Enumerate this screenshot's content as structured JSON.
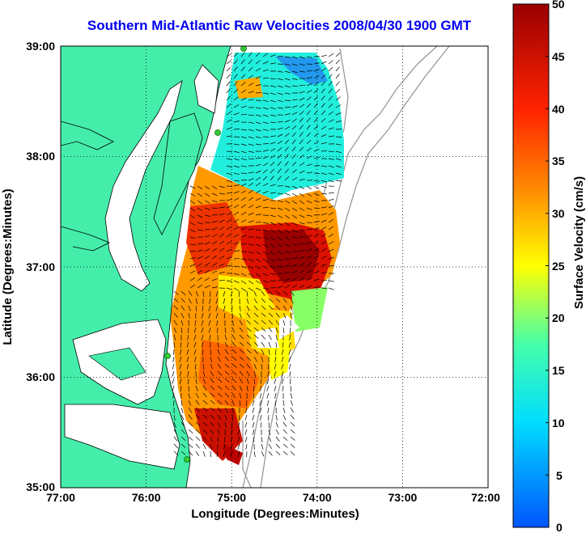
{
  "title": "Southern Mid-Atlantic Raw Velocities 2008/04/30 1900 GMT",
  "map": {
    "x_label": "Longitude (Degrees:Minutes)",
    "y_label": "Latitude (Degrees:Minutes)",
    "x_ticks": [
      "77:00",
      "76:00",
      "75:00",
      "74:00",
      "73:00",
      "72:00"
    ],
    "y_ticks": [
      "39:00",
      "38:00",
      "37:00",
      "36:00",
      "35:00"
    ],
    "land_color": "#44eeaa",
    "grid": "dotted",
    "colors": {
      "land": "#44eeaa",
      "stations": "#33cc33",
      "bathymetry": "#999999",
      "coast": "#000000"
    }
  },
  "colorbar": {
    "label": "Surface Velocity (cm/s)",
    "ticks": [
      "50",
      "45",
      "40",
      "35",
      "30",
      "25",
      "20",
      "15",
      "10",
      "5",
      "0"
    ],
    "range": [
      0,
      50
    ],
    "colormap": "jet"
  },
  "chart_data": {
    "type": "heatmap",
    "title": "Southern Mid-Atlantic Raw Velocities 2008/04/30 1900 GMT",
    "xlabel": "Longitude (Degrees:Minutes)",
    "ylabel": "Latitude (Degrees:Minutes)",
    "xlim": [
      "77:00",
      "72:00"
    ],
    "ylim": [
      "35:00",
      "39:00"
    ],
    "colorbar_label": "Surface Velocity (cm/s)",
    "colorbar_range": [
      0,
      50
    ],
    "stations": [
      {
        "lon": -74.9,
        "lat": 39.0
      },
      {
        "lon": -75.15,
        "lat": 38.23
      },
      {
        "lon": -75.7,
        "lat": 36.18
      },
      {
        "lon": -75.5,
        "lat": 35.25
      }
    ]
  }
}
